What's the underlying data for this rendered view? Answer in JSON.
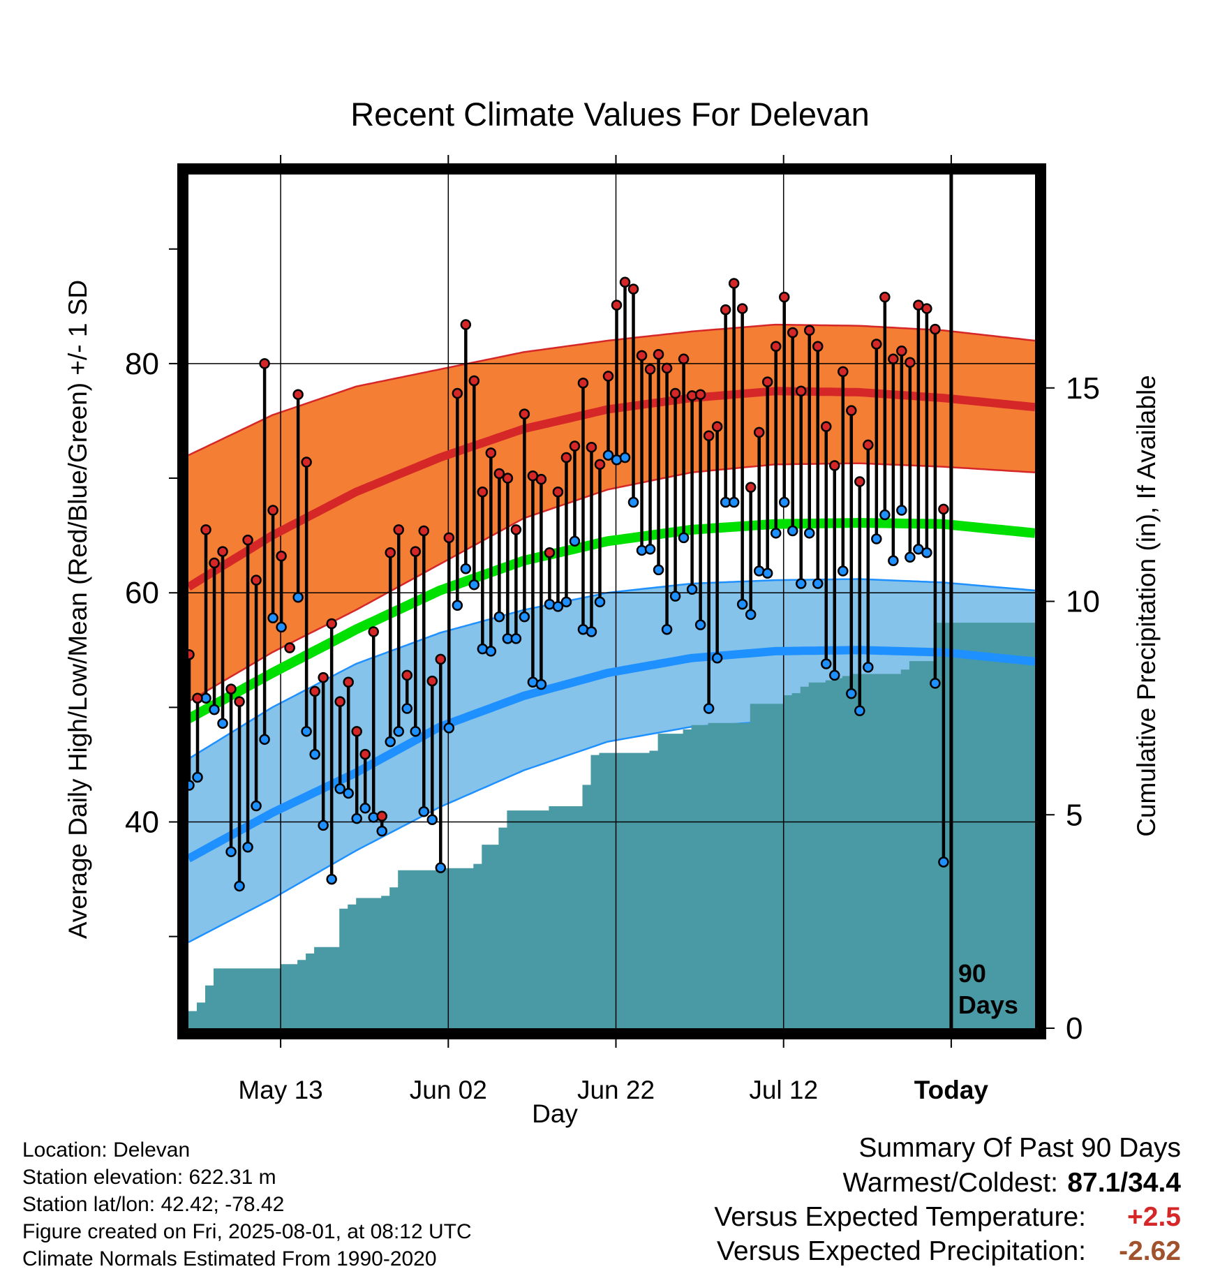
{
  "chart_data": {
    "type": "line",
    "title": "Recent Climate Values For Delevan",
    "xlabel": "Day",
    "ylabel": "Average Daily High/Low/Mean (Red/Blue/Green) +/- 1 SD",
    "y2label": "Cumulative Precipitation (in), If Available",
    "x_tick_labels": [
      "May 13",
      "Jun 02",
      "Jun 22",
      "Jul 12",
      "Today"
    ],
    "x_tick_days": [
      11,
      31,
      51,
      71,
      91
    ],
    "x_range_days": [
      0,
      101
    ],
    "ylim": [
      22,
      96.5
    ],
    "y_ticks": [
      40,
      60,
      80
    ],
    "y_minor_ticks": [
      30,
      50,
      70,
      90
    ],
    "y2lim": [
      0,
      20
    ],
    "y2_ticks": [
      0,
      5,
      10,
      15
    ],
    "grid": true,
    "today_annotation": "90 Days",
    "normals": {
      "day": [
        0,
        10,
        20,
        30,
        40,
        50,
        60,
        70,
        80,
        90,
        101
      ],
      "high_mean": [
        60.5,
        65.0,
        68.8,
        71.8,
        74.3,
        76.0,
        77.0,
        77.6,
        77.5,
        77.0,
        76.2
      ],
      "high_plus_sd": [
        72.0,
        75.5,
        78.0,
        79.5,
        81.0,
        82.0,
        82.8,
        83.4,
        83.3,
        82.9,
        82.0
      ],
      "high_minus_sd": [
        50.5,
        54.8,
        58.5,
        62.5,
        66.5,
        69.0,
        70.5,
        71.2,
        71.3,
        71.0,
        70.5
      ],
      "mean": [
        49.0,
        53.0,
        56.8,
        60.2,
        62.8,
        64.5,
        65.5,
        66.0,
        66.1,
        66.0,
        65.2
      ],
      "low_mean": [
        36.8,
        40.8,
        44.3,
        48.3,
        51.0,
        53.0,
        54.3,
        54.9,
        55.0,
        54.8,
        54.0
      ],
      "low_plus_sd": [
        45.5,
        50.0,
        53.8,
        56.5,
        58.5,
        60.0,
        60.8,
        61.1,
        61.2,
        60.9,
        60.2
      ],
      "low_minus_sd": [
        29.5,
        33.3,
        37.5,
        41.3,
        44.5,
        47.0,
        48.3,
        48.8,
        49.0,
        48.8,
        48.2
      ]
    },
    "series": [
      {
        "name": "Daily High",
        "color": "#d62728",
        "day": [
          0,
          1,
          2,
          3,
          4,
          5,
          6,
          7,
          8,
          9,
          10,
          11,
          12,
          13,
          14,
          15,
          16,
          17,
          18,
          19,
          20,
          21,
          22,
          23,
          24,
          25,
          26,
          27,
          28,
          29,
          30,
          31,
          32,
          33,
          34,
          35,
          36,
          37,
          38,
          39,
          40,
          41,
          42,
          43,
          44,
          45,
          46,
          47,
          48,
          49,
          50,
          51,
          52,
          53,
          54,
          55,
          56,
          57,
          58,
          59,
          60,
          61,
          62,
          63,
          64,
          65,
          66,
          67,
          68,
          69,
          70,
          71,
          72,
          73,
          74,
          75,
          76,
          77,
          78,
          79,
          80,
          81,
          82,
          83,
          84,
          85,
          86,
          87,
          88,
          89,
          90
        ],
        "values": [
          54.6,
          50.8,
          65.5,
          62.6,
          63.6,
          51.6,
          50.5,
          64.6,
          61.1,
          80.0,
          67.2,
          63.2,
          55.2,
          77.3,
          71.4,
          51.4,
          52.6,
          57.3,
          50.5,
          52.2,
          47.9,
          45.9,
          56.6,
          40.5,
          63.5,
          65.5,
          52.8,
          63.6,
          65.4,
          52.3,
          54.2,
          64.8,
          77.4,
          83.4,
          78.5,
          68.8,
          72.2,
          70.4,
          70.0,
          65.5,
          75.6,
          70.2,
          69.9,
          63.5,
          68.8,
          71.8,
          72.8,
          78.3,
          72.7,
          71.2,
          78.9,
          85.1,
          87.1,
          86.5,
          80.7,
          79.5,
          80.8,
          79.6,
          77.4,
          80.4,
          77.2,
          77.3,
          73.7,
          74.5,
          84.7,
          87.0,
          84.8,
          69.2,
          74.0,
          78.4,
          81.5,
          85.8,
          82.7,
          77.6,
          82.9,
          81.5,
          74.5,
          71.1,
          79.3,
          75.9,
          69.7,
          72.9,
          81.7,
          85.8,
          80.4,
          81.1,
          80.1,
          85.1,
          84.8,
          83.0,
          67.3
        ]
      },
      {
        "name": "Daily Low",
        "color": "#1e90ff",
        "day": [
          0,
          1,
          2,
          3,
          4,
          5,
          6,
          7,
          8,
          9,
          10,
          11,
          12,
          13,
          14,
          15,
          16,
          17,
          18,
          19,
          20,
          21,
          22,
          23,
          24,
          25,
          26,
          27,
          28,
          29,
          30,
          31,
          32,
          33,
          34,
          35,
          36,
          37,
          38,
          39,
          40,
          41,
          42,
          43,
          44,
          45,
          46,
          47,
          48,
          49,
          50,
          51,
          52,
          53,
          54,
          55,
          56,
          57,
          58,
          59,
          60,
          61,
          62,
          63,
          64,
          65,
          66,
          67,
          68,
          69,
          70,
          71,
          72,
          73,
          74,
          75,
          76,
          77,
          78,
          79,
          80,
          81,
          82,
          83,
          84,
          85,
          86,
          87,
          88,
          89,
          90
        ],
        "values": [
          43.2,
          43.9,
          50.8,
          49.8,
          48.6,
          37.4,
          34.4,
          37.8,
          41.4,
          47.2,
          57.8,
          57.0,
          55.2,
          59.6,
          47.9,
          45.9,
          39.7,
          35.0,
          42.9,
          42.5,
          40.3,
          41.2,
          40.4,
          39.2,
          47.0,
          47.9,
          49.9,
          47.9,
          40.9,
          40.2,
          36.0,
          48.2,
          58.9,
          62.1,
          60.7,
          55.1,
          54.9,
          57.9,
          56.0,
          56.0,
          57.9,
          52.2,
          52.0,
          59.0,
          58.8,
          59.2,
          64.5,
          56.8,
          56.6,
          59.2,
          72.0,
          71.6,
          71.8,
          67.9,
          63.7,
          63.8,
          62.0,
          56.8,
          59.7,
          64.8,
          60.3,
          57.2,
          49.9,
          54.3,
          67.9,
          67.9,
          59.0,
          58.1,
          61.9,
          61.7,
          65.2,
          67.9,
          65.4,
          60.8,
          65.2,
          60.8,
          53.8,
          52.8,
          61.9,
          51.2,
          49.7,
          53.5,
          64.7,
          66.8,
          62.8,
          67.2,
          63.1,
          63.8,
          63.5,
          52.1,
          36.5
        ]
      }
    ],
    "precipitation": {
      "name": "Cumulative Precipitation",
      "color": "#4a9aa5",
      "day": [
        0,
        1,
        2,
        3,
        4,
        5,
        6,
        7,
        8,
        9,
        10,
        11,
        12,
        13,
        14,
        15,
        16,
        17,
        18,
        19,
        20,
        21,
        22,
        23,
        24,
        25,
        26,
        27,
        28,
        29,
        30,
        31,
        32,
        33,
        34,
        35,
        36,
        37,
        38,
        39,
        40,
        41,
        42,
        43,
        44,
        45,
        46,
        47,
        48,
        49,
        50,
        51,
        52,
        53,
        54,
        55,
        56,
        57,
        58,
        59,
        60,
        61,
        62,
        63,
        64,
        65,
        66,
        67,
        68,
        69,
        70,
        71,
        72,
        73,
        74,
        75,
        76,
        77,
        78,
        79,
        80,
        81,
        82,
        83,
        84,
        85,
        86,
        87,
        88,
        89,
        90,
        91,
        101
      ],
      "values": [
        0.4,
        0.6,
        1.0,
        1.4,
        1.4,
        1.4,
        1.4,
        1.4,
        1.4,
        1.4,
        1.4,
        1.5,
        1.5,
        1.6,
        1.75,
        1.9,
        1.9,
        1.9,
        2.8,
        2.9,
        3.05,
        3.05,
        3.05,
        3.1,
        3.3,
        3.7,
        3.7,
        3.7,
        3.7,
        3.7,
        3.75,
        3.75,
        3.75,
        3.75,
        3.85,
        4.3,
        4.3,
        4.7,
        5.1,
        5.1,
        5.1,
        5.1,
        5.1,
        5.2,
        5.2,
        5.2,
        5.2,
        5.7,
        6.4,
        6.45,
        6.45,
        6.45,
        6.45,
        6.45,
        6.45,
        6.5,
        6.9,
        6.9,
        6.9,
        7.0,
        7.1,
        7.1,
        7.15,
        7.15,
        7.15,
        7.15,
        7.15,
        7.6,
        7.6,
        7.6,
        7.6,
        7.8,
        7.85,
        8.0,
        8.1,
        8.1,
        8.15,
        8.2,
        8.25,
        8.3,
        8.3,
        8.3,
        8.3,
        8.3,
        8.3,
        8.4,
        8.6,
        8.6,
        8.6,
        9.5,
        9.5,
        9.5,
        9.5
      ]
    }
  },
  "location_info": [
    "Location: Delevan",
    "Station elevation: 622.31 m",
    "Station lat/lon: 42.42; -78.42",
    "Figure created on Fri, 2025-08-01, at 08:12 UTC",
    "Climate Normals Estimated From 1990-2020"
  ],
  "summary": {
    "heading": "Summary Of Past 90 Days",
    "warmest_coldest_label": "Warmest/Coldest:",
    "warmest_coldest_value": "87.1/34.4",
    "temp_label": "Versus Expected Temperature:",
    "temp_value": "+2.5",
    "temp_color": "#d62728",
    "precip_label": "Versus Expected Precipitation:",
    "precip_value": "-2.62",
    "precip_color": "#a0522d"
  },
  "colors": {
    "high_band": "#f37e34",
    "high_line": "#d62728",
    "mean_line": "#00e000",
    "low_band": "#86c3ea",
    "low_line": "#1e90ff",
    "precip_fill": "#4a9aa5"
  }
}
